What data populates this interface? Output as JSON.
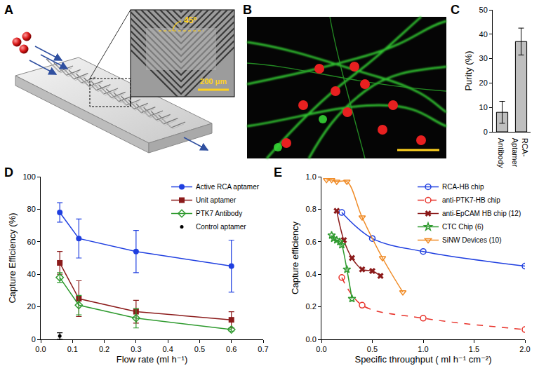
{
  "panels": {
    "A": {
      "label": "A",
      "angle_label": "45⁰",
      "scale_label": "200 μm"
    },
    "B": {
      "label": "B"
    }
  },
  "chart_data": [
    {
      "label": "C",
      "type": "bar",
      "categories": [
        "Antibody",
        "RCA-\nAptamer"
      ],
      "values": [
        8,
        37
      ],
      "errors": [
        4.5,
        5.5
      ],
      "color": "#bfbfbf",
      "ylabel": "Purity (%)",
      "ylim": [
        0,
        50
      ],
      "yticks": [
        0,
        10,
        20,
        30,
        40,
        50
      ],
      "grid": false
    },
    {
      "label": "D",
      "type": "line",
      "xlabel": "Flow rate (ml h⁻¹)",
      "ylabel": "Capture Efficiency (%)",
      "xlim": [
        0,
        0.7
      ],
      "xticks": [
        {
          "value": 0,
          "label": "0.0"
        },
        0.1,
        0.2,
        0.3,
        0.4,
        0.5,
        0.6,
        0.7
      ],
      "ylim": [
        0,
        100
      ],
      "yticks": [
        0,
        20,
        40,
        60,
        80,
        100
      ],
      "grid": false,
      "legend": "upper right",
      "series": [
        {
          "name": "Active RCA aptamer",
          "color": "#1f3fe0",
          "marker": "circle",
          "line_style": "solid",
          "x": [
            0.06,
            0.12,
            0.3,
            0.6
          ],
          "values": [
            78,
            62,
            54,
            45
          ],
          "errors": [
            6,
            12,
            13,
            16
          ]
        },
        {
          "name": "Unit aptamer",
          "color": "#8b1a1a",
          "marker": "square",
          "line_style": "solid",
          "x": [
            0.06,
            0.12,
            0.3,
            0.6
          ],
          "values": [
            47,
            25,
            17,
            12
          ],
          "errors": [
            7,
            11,
            7,
            5
          ]
        },
        {
          "name": "PTK7 Antibody",
          "color": "#2e9a2e",
          "marker": "diamond-open",
          "line_style": "solid",
          "x": [
            0.06,
            0.12,
            0.3,
            0.6
          ],
          "values": [
            38,
            21,
            13,
            6
          ],
          "errors": [
            3,
            6,
            6,
            1
          ]
        },
        {
          "name": "Control aptamer",
          "color": "#000000",
          "marker": "circle",
          "type": "scatter",
          "x": [
            0.06
          ],
          "values": [
            2
          ],
          "errors": [
            2
          ]
        }
      ]
    },
    {
      "label": "E",
      "type": "line",
      "xlabel": "Specific throughput ( ml h⁻¹ cm⁻²)",
      "ylabel": "Capture efficiency",
      "xlim": [
        0,
        2
      ],
      "xticks": [
        {
          "value": 0,
          "label": "0.0"
        },
        0.5,
        {
          "value": 1,
          "label": "1.0"
        },
        1.5,
        {
          "value": 2,
          "label": "2.0"
        }
      ],
      "ylim": [
        0,
        1
      ],
      "yticks": [
        {
          "value": 0,
          "label": "0.0"
        },
        0.2,
        0.4,
        0.6,
        0.8,
        {
          "value": 1,
          "label": "1.0"
        }
      ],
      "grid": false,
      "legend": "upper right",
      "series": [
        {
          "name": "RCA-HB chip",
          "color": "#1f3fe0",
          "marker": "circle-open",
          "line_style": "solid",
          "x": [
            0.2,
            0.5,
            1.0,
            2.0
          ],
          "values": [
            0.78,
            0.62,
            0.54,
            0.45
          ]
        },
        {
          "name": "anti-PTK7-HB chip",
          "color": "#e8322a",
          "marker": "circle-open",
          "line_style": "dash",
          "x": [
            0.2,
            0.4,
            1.0,
            2.0
          ],
          "values": [
            0.38,
            0.21,
            0.13,
            0.06
          ]
        },
        {
          "name": "anti-EpCAM HB chip (12)",
          "color": "#8b1a1a",
          "marker": "x",
          "line_style": "solid",
          "x": [
            0.15,
            0.22,
            0.3,
            0.4,
            0.5,
            0.58
          ],
          "values": [
            0.79,
            0.61,
            0.5,
            0.43,
            0.42,
            0.39
          ]
        },
        {
          "name": "CTC Chip (6)",
          "color": "#2e9a2e",
          "marker": "star-open",
          "line_style": "solid",
          "x": [
            0.1,
            0.12,
            0.15,
            0.18,
            0.2,
            0.25,
            0.3
          ],
          "values": [
            0.64,
            0.62,
            0.61,
            0.6,
            0.58,
            0.43,
            0.25
          ]
        },
        {
          "name": "SiNW Devices (10)",
          "color": "#f08a24",
          "marker": "triangle-down-open",
          "line_style": "solid",
          "x": [
            0.05,
            0.1,
            0.15,
            0.25,
            0.4,
            0.6,
            0.8
          ],
          "values": [
            0.98,
            0.98,
            0.97,
            0.97,
            0.75,
            0.5,
            0.29
          ]
        }
      ]
    }
  ]
}
